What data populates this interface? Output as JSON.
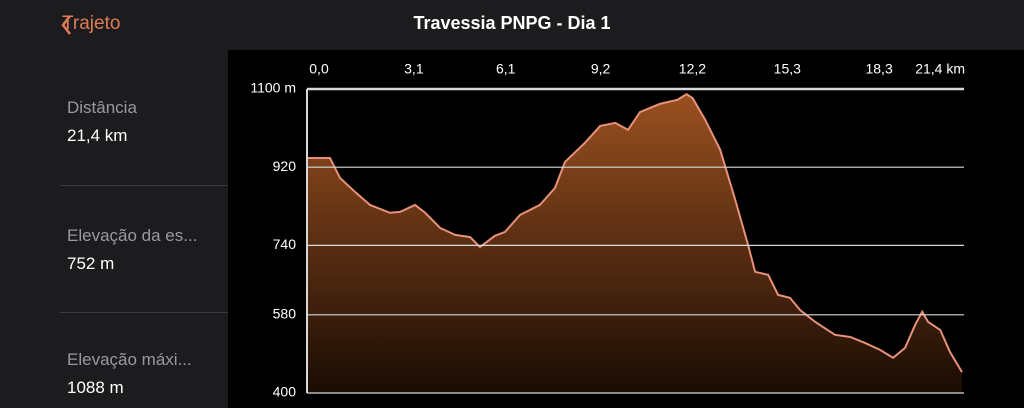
{
  "header": {
    "back": "Trajeto",
    "title": "Travessia PNPG - Dia 1"
  },
  "stats": [
    {
      "label": "Distância",
      "value": "21,4 km"
    },
    {
      "label": "Elevação da es...",
      "value": "752 m"
    },
    {
      "label": "Elevação máxi...",
      "value": "1088 m"
    }
  ],
  "chart_data": {
    "type": "area",
    "x": [
      0,
      0.75,
      1.08,
      1.57,
      2.06,
      2.71,
      3.04,
      3.53,
      3.86,
      4.35,
      4.84,
      5.33,
      5.65,
      6.14,
      6.47,
      6.96,
      7.61,
      8.1,
      8.43,
      9.08,
      9.58,
      10.07,
      10.49,
      10.88,
      11.54,
      12.1,
      12.4,
      12.6,
      13.01,
      13.5,
      13.99,
      14.41,
      14.64,
      15.07,
      15.39,
      15.78,
      16.11,
      16.6,
      17.25,
      17.75,
      18.24,
      18.73,
      19.15,
      19.54,
      19.87,
      20.1,
      20.29,
      20.69,
      21.01,
      21.4
    ],
    "values": [
      941,
      941,
      895,
      863,
      833,
      815,
      817,
      833,
      815,
      780,
      764,
      759,
      736,
      762,
      771,
      810,
      833,
      872,
      932,
      976,
      1015,
      1022,
      1006,
      1047,
      1066,
      1075,
      1088,
      1079,
      1029,
      960,
      845,
      741,
      679,
      672,
      626,
      619,
      591,
      564,
      534,
      529,
      515,
      499,
      481,
      504,
      557,
      587,
      564,
      545,
      494,
      448
    ],
    "color": "#e8917a",
    "xlim": [
      0,
      21.4
    ],
    "xticks": [
      {
        "value": 0,
        "label": "0,0"
      },
      {
        "value": 3.1,
        "label": "3,1"
      },
      {
        "value": 6.1,
        "label": "6,1"
      },
      {
        "value": 9.2,
        "label": "9,2"
      },
      {
        "value": 12.2,
        "label": "12,2"
      },
      {
        "value": 15.3,
        "label": "15,3"
      },
      {
        "value": 18.3,
        "label": "18,3"
      },
      {
        "value": 21.4,
        "label": "21,4 km"
      }
    ],
    "ylim": [
      400,
      1100
    ],
    "yticks": [
      {
        "value": 1100,
        "label": "1100 m"
      },
      920,
      740,
      580,
      400
    ],
    "grid": true
  }
}
